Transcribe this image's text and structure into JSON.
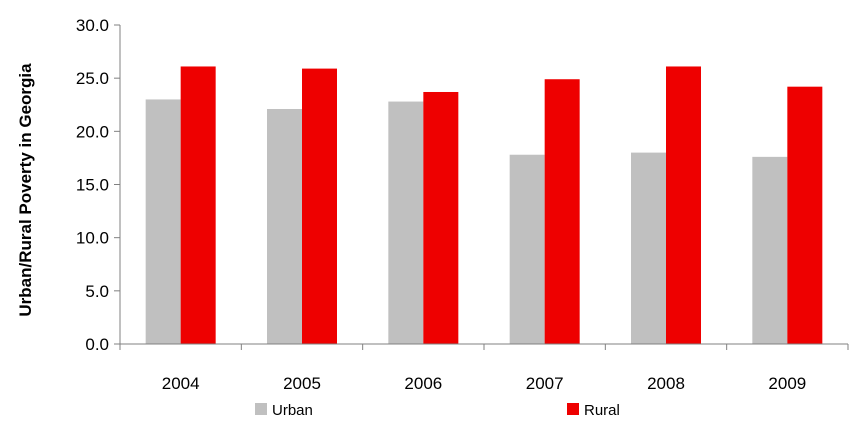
{
  "chart_data": {
    "type": "bar",
    "ylabel": "Urban/Rural Poverty in Georgia",
    "xlabel": "",
    "categories": [
      "2004",
      "2005",
      "2006",
      "2007",
      "2008",
      "2009"
    ],
    "series": [
      {
        "name": "Urban",
        "color": "#c0c0c0",
        "values": [
          23.0,
          22.1,
          22.8,
          17.8,
          18.0,
          17.6
        ]
      },
      {
        "name": "Rural",
        "color": "#ee0000",
        "values": [
          26.1,
          25.9,
          23.7,
          24.9,
          26.1,
          24.2
        ]
      }
    ],
    "ylim": [
      0,
      30
    ],
    "yticks": [
      "0.0",
      "5.0",
      "10.0",
      "15.0",
      "20.0",
      "25.0",
      "30.0"
    ],
    "grid": false,
    "legend_position": "bottom"
  }
}
